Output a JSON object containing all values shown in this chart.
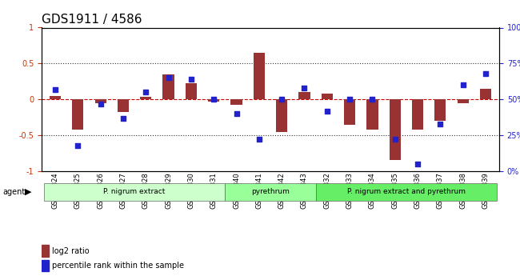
{
  "title": "GDS1911 / 4586",
  "samples": [
    "GSM66824",
    "GSM66825",
    "GSM66826",
    "GSM66827",
    "GSM66828",
    "GSM66829",
    "GSM66830",
    "GSM66831",
    "GSM66840",
    "GSM66841",
    "GSM66842",
    "GSM66843",
    "GSM66832",
    "GSM66833",
    "GSM66834",
    "GSM66835",
    "GSM66836",
    "GSM66837",
    "GSM66838",
    "GSM66839"
  ],
  "log2_ratio": [
    0.05,
    -0.42,
    -0.05,
    -0.18,
    0.04,
    0.35,
    0.22,
    -0.03,
    -0.08,
    0.65,
    -0.45,
    0.1,
    0.08,
    -0.35,
    -0.42,
    -0.85,
    -0.42,
    -0.3,
    -0.05,
    0.15
  ],
  "percentile": [
    57,
    18,
    47,
    37,
    55,
    65,
    64,
    50,
    40,
    22,
    50,
    58,
    42,
    50,
    50,
    22,
    5,
    33,
    60,
    68
  ],
  "groups": [
    {
      "label": "P. nigrum extract",
      "start": 0,
      "end": 8,
      "color": "#ccffcc"
    },
    {
      "label": "pyrethrum",
      "start": 8,
      "end": 12,
      "color": "#99ff99"
    },
    {
      "label": "P. nigrum extract and pyrethrum",
      "start": 12,
      "end": 20,
      "color": "#66ee66"
    }
  ],
  "bar_color": "#993333",
  "dot_color": "#2222cc",
  "zero_line_color": "#cc0000",
  "grid_color": "#333333",
  "ylim_left": [
    -1,
    1
  ],
  "ylim_right": [
    0,
    100
  ],
  "background_color": "#e8e8e8"
}
